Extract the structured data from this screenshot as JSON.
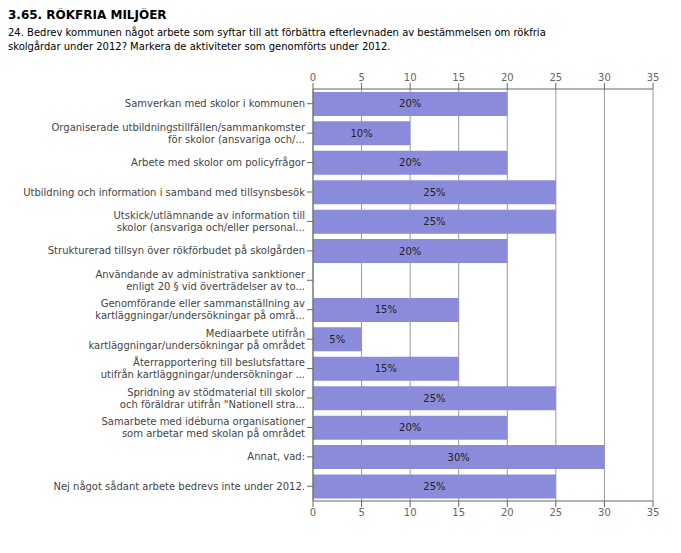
{
  "chart_data": {
    "type": "bar",
    "orientation": "horizontal",
    "title": "3.65. RÖKFRIA MILJÖER",
    "subtitle": "24. Bedrev kommunen något arbete som syftar till att förbättra efterlevnaden av bestämmelsen om rökfria\nskolgårdar under 2012? Markera de aktiviteter som genomförts under 2012.",
    "categories": [
      "Samverkan med skolor i kommunen",
      "Organiserade utbildningstillfällen/sammankomster\nför skolor (ansvariga och/...",
      "Arbete med skolor om policyfrågor",
      "Utbildning och information i samband med tillsynsbesök",
      "Utskick/utlämnande av information till\nskolor (ansvariga och/eller personal...",
      "Strukturerad tillsyn över rökförbudet på skolgården",
      "Användande av administrativa sanktioner\nenligt 20 § vid överträdelser av to...",
      "Genomförande eller sammanställning av\nkartläggningar/undersökningar på områ...",
      "Mediaarbete utifrån\nkartläggningar/undersökningar på området",
      "Återrapportering till beslutsfattare\nutifrån kartläggningar/undersökningar ...",
      "Spridning av stödmaterial till skolor\noch föräldrar utifrån \"Nationell stra...",
      "Samarbete med idéburna organisationer\nsom arbetar med skolan på området",
      "Annat, vad:",
      "Nej något sådant arbete bedrevs inte under 2012."
    ],
    "values": [
      20,
      10,
      20,
      25,
      25,
      20,
      0,
      15,
      5,
      15,
      25,
      20,
      30,
      25
    ],
    "value_labels": [
      "20%",
      "10%",
      "20%",
      "25%",
      "25%",
      "20%",
      null,
      "15%",
      "5%",
      "15%",
      "25%",
      "20%",
      "30%",
      "25%"
    ],
    "data_labels": true,
    "color": "#8b8bdb",
    "xlim": [
      0,
      35
    ],
    "xticks": [
      0,
      5,
      10,
      15,
      20,
      25,
      30,
      35
    ],
    "grid": true
  }
}
